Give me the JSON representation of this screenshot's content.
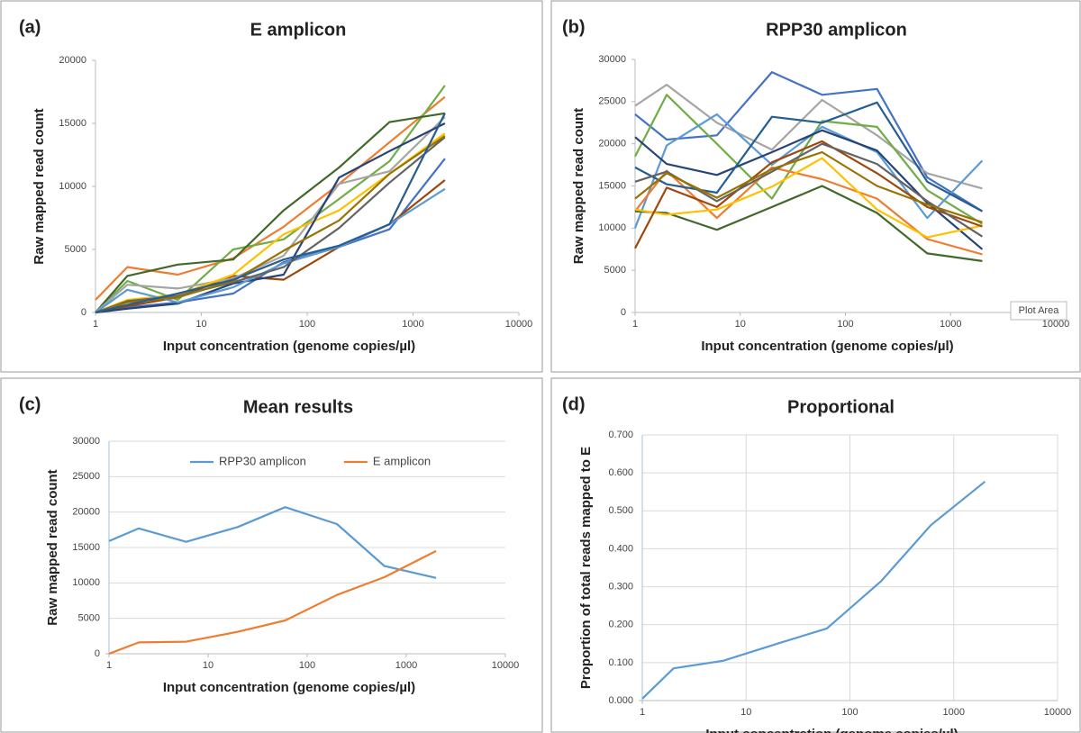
{
  "chart_data": [
    {
      "type": "line",
      "label": "(a)",
      "title": "E amplicon",
      "xlabel": "Input concentration (genome copies/µl)",
      "ylabel": "Raw mapped read count",
      "x": [
        1,
        2,
        6,
        20,
        60,
        200,
        600,
        2000
      ],
      "xscale": "log",
      "xlim": [
        1,
        10000
      ],
      "xticks": [
        1,
        10,
        100,
        1000,
        10000
      ],
      "ylim": [
        0,
        20000
      ],
      "yticks": [
        0,
        5000,
        10000,
        15000,
        20000
      ],
      "xgrid": false,
      "ygrid": false,
      "series": [
        {
          "color": "#ed7d31",
          "values": [
            1000,
            3600,
            3000,
            4300,
            6800,
            10200,
            13500,
            17100
          ]
        },
        {
          "color": "#70ad47",
          "values": [
            0,
            2500,
            1000,
            5000,
            5800,
            9000,
            12000,
            18000
          ]
        },
        {
          "color": "#43682b",
          "values": [
            0,
            2900,
            3800,
            4200,
            8100,
            11500,
            15100,
            15800
          ]
        },
        {
          "color": "#4472c4",
          "values": [
            0,
            400,
            800,
            1500,
            4000,
            5200,
            6600,
            12200
          ]
        },
        {
          "color": "#9e480e",
          "values": [
            0,
            500,
            1200,
            2900,
            2600,
            5200,
            7000,
            10500
          ]
        },
        {
          "color": "#a5a5a5",
          "values": [
            0,
            2200,
            1900,
            2700,
            4500,
            10200,
            11200,
            15500
          ]
        },
        {
          "color": "#ffc000",
          "values": [
            0,
            1000,
            1400,
            3000,
            6200,
            8100,
            11000,
            14200
          ]
        },
        {
          "color": "#264478",
          "values": [
            0,
            300,
            700,
            2300,
            3000,
            10700,
            12800,
            15000
          ]
        },
        {
          "color": "#5b9bd5",
          "values": [
            0,
            1800,
            800,
            2000,
            3900,
            5200,
            7000,
            9800
          ]
        },
        {
          "color": "#636363",
          "values": [
            0,
            900,
            1300,
            2400,
            3600,
            6700,
            10300,
            13900
          ]
        },
        {
          "color": "#997300",
          "values": [
            0,
            800,
            1200,
            2500,
            4900,
            7300,
            11000,
            14000
          ]
        },
        {
          "color": "#255e91",
          "values": [
            0,
            600,
            1500,
            2600,
            4200,
            5300,
            7000,
            15800
          ]
        }
      ]
    },
    {
      "type": "line",
      "label": "(b)",
      "title": "RPP30 amplicon",
      "xlabel": "Input concentration (genome copies/µl)",
      "ylabel": "Raw mapped read count",
      "tooltip": "Plot Area",
      "x": [
        1,
        2,
        6,
        20,
        60,
        200,
        600,
        2000
      ],
      "xscale": "log",
      "xlim": [
        1,
        10000
      ],
      "xticks": [
        1,
        10,
        100,
        1000,
        10000
      ],
      "ylim": [
        0,
        30000
      ],
      "yticks": [
        0,
        5000,
        10000,
        15000,
        20000,
        25000,
        30000
      ],
      "xgrid": false,
      "ygrid": false,
      "series": [
        {
          "color": "#4472c4",
          "values": [
            23500,
            20500,
            21000,
            28500,
            25800,
            26500,
            16000,
            12000
          ]
        },
        {
          "color": "#a5a5a5",
          "values": [
            24500,
            27000,
            22500,
            19300,
            25200,
            21000,
            16500,
            14700
          ]
        },
        {
          "color": "#70ad47",
          "values": [
            18500,
            25800,
            20000,
            13500,
            22700,
            22000,
            14500,
            10500
          ]
        },
        {
          "color": "#5b9bd5",
          "values": [
            10000,
            19800,
            23500,
            17500,
            22000,
            19000,
            11200,
            18000
          ]
        },
        {
          "color": "#264478",
          "values": [
            20800,
            17600,
            16300,
            19000,
            21600,
            19200,
            13000,
            7500
          ]
        },
        {
          "color": "#ed7d31",
          "values": [
            12000,
            16800,
            11200,
            17200,
            15800,
            13500,
            8700,
            6900
          ]
        },
        {
          "color": "#43682b",
          "values": [
            12000,
            11800,
            9800,
            12500,
            15000,
            11800,
            7000,
            6100
          ]
        },
        {
          "color": "#ffc000",
          "values": [
            12200,
            11600,
            12200,
            14900,
            18300,
            12200,
            8900,
            10300
          ]
        },
        {
          "color": "#9e480e",
          "values": [
            7600,
            14800,
            12500,
            17800,
            20300,
            16500,
            12500,
            10200
          ]
        },
        {
          "color": "#255e91",
          "values": [
            17200,
            15200,
            14200,
            23200,
            22500,
            24900,
            15500,
            12000
          ]
        },
        {
          "color": "#636363",
          "values": [
            15500,
            16700,
            13200,
            16700,
            20000,
            17600,
            13200,
            9000
          ]
        },
        {
          "color": "#997300",
          "values": [
            13500,
            16500,
            13600,
            17000,
            19000,
            15000,
            12800,
            10700
          ]
        }
      ]
    },
    {
      "type": "line",
      "label": "(c)",
      "title": "Mean results",
      "xlabel": "Input concentration (genome copies/µl)",
      "ylabel": "Raw mapped read count",
      "x": [
        1,
        2,
        6,
        20,
        60,
        200,
        600,
        2000
      ],
      "xscale": "log",
      "xlim": [
        1,
        10000
      ],
      "xticks": [
        1,
        10,
        100,
        1000,
        10000
      ],
      "ylim": [
        0,
        30000
      ],
      "yticks": [
        0,
        5000,
        10000,
        15000,
        20000,
        25000,
        30000
      ],
      "xgrid": false,
      "ygrid": true,
      "legend": "top",
      "series": [
        {
          "name": "RPP30 amplicon",
          "color": "#5b9bd5",
          "values": [
            15900,
            17700,
            15800,
            17900,
            20700,
            18300,
            12400,
            10700
          ]
        },
        {
          "name": "E amplicon",
          "color": "#ed7d31",
          "values": [
            0,
            1600,
            1700,
            3100,
            4700,
            8300,
            10800,
            14500
          ]
        }
      ]
    },
    {
      "type": "line",
      "label": "(d)",
      "title": "Proportional",
      "xlabel": "Input concentration (genome copies/µl)",
      "ylabel": "Proportion of total reads mapped to E",
      "x": [
        1,
        2,
        6,
        20,
        60,
        200,
        600,
        2000
      ],
      "xscale": "log",
      "xlim": [
        1,
        10000
      ],
      "xticks": [
        1,
        10,
        100,
        1000,
        10000
      ],
      "ylim": [
        0,
        0.7
      ],
      "yticks": [
        {
          "value": 0,
          "label": "0.000"
        },
        {
          "value": 0.1,
          "label": "0.100"
        },
        {
          "value": 0.2,
          "label": "0.200"
        },
        {
          "value": 0.3,
          "label": "0.300"
        },
        {
          "value": 0.4,
          "label": "0.400"
        },
        {
          "value": 0.5,
          "label": "0.500"
        },
        {
          "value": 0.6,
          "label": "0.600"
        },
        {
          "value": 0.7,
          "label": "0.700"
        }
      ],
      "xgrid": true,
      "ygrid": true,
      "color": "#5b9bd5",
      "values": [
        0.005,
        0.085,
        0.105,
        0.15,
        0.19,
        0.315,
        0.462,
        0.577
      ]
    }
  ]
}
